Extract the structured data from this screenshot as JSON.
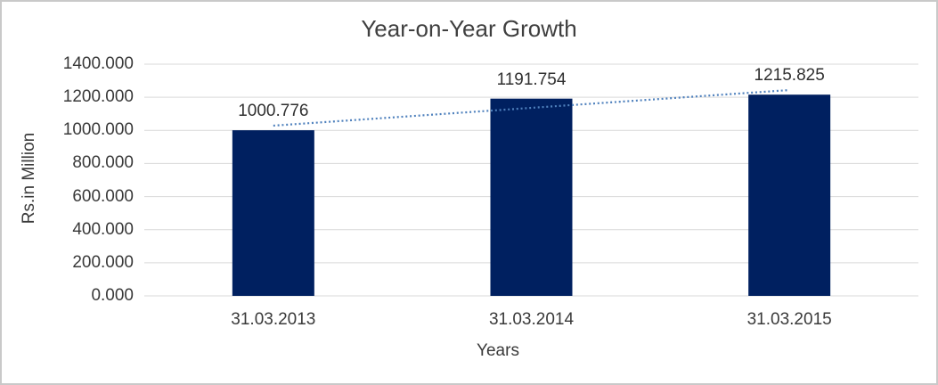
{
  "chart_data": {
    "type": "bar",
    "title": "Year-on-Year Growth",
    "categories": [
      "31.03.2013",
      "31.03.2014",
      "31.03.2015"
    ],
    "values": [
      1000.776,
      1191.754,
      1215.825
    ],
    "value_labels": [
      "1000.776",
      "1191.754",
      "1215.825"
    ],
    "xlabel": "Years",
    "ylabel": "Rs.in Million",
    "ylim": [
      0,
      1400
    ],
    "ytick_step": 200,
    "ytick_labels": [
      "0.000",
      "200.000",
      "400.000",
      "600.000",
      "800.000",
      "1000.000",
      "1200.000",
      "1400.000"
    ],
    "grid": true,
    "legend": "none",
    "bar_color": "#002060",
    "gridline_color": "#d9d9d9",
    "trendline": {
      "type": "linear",
      "style": "dotted",
      "color": "#4f81bd"
    }
  }
}
